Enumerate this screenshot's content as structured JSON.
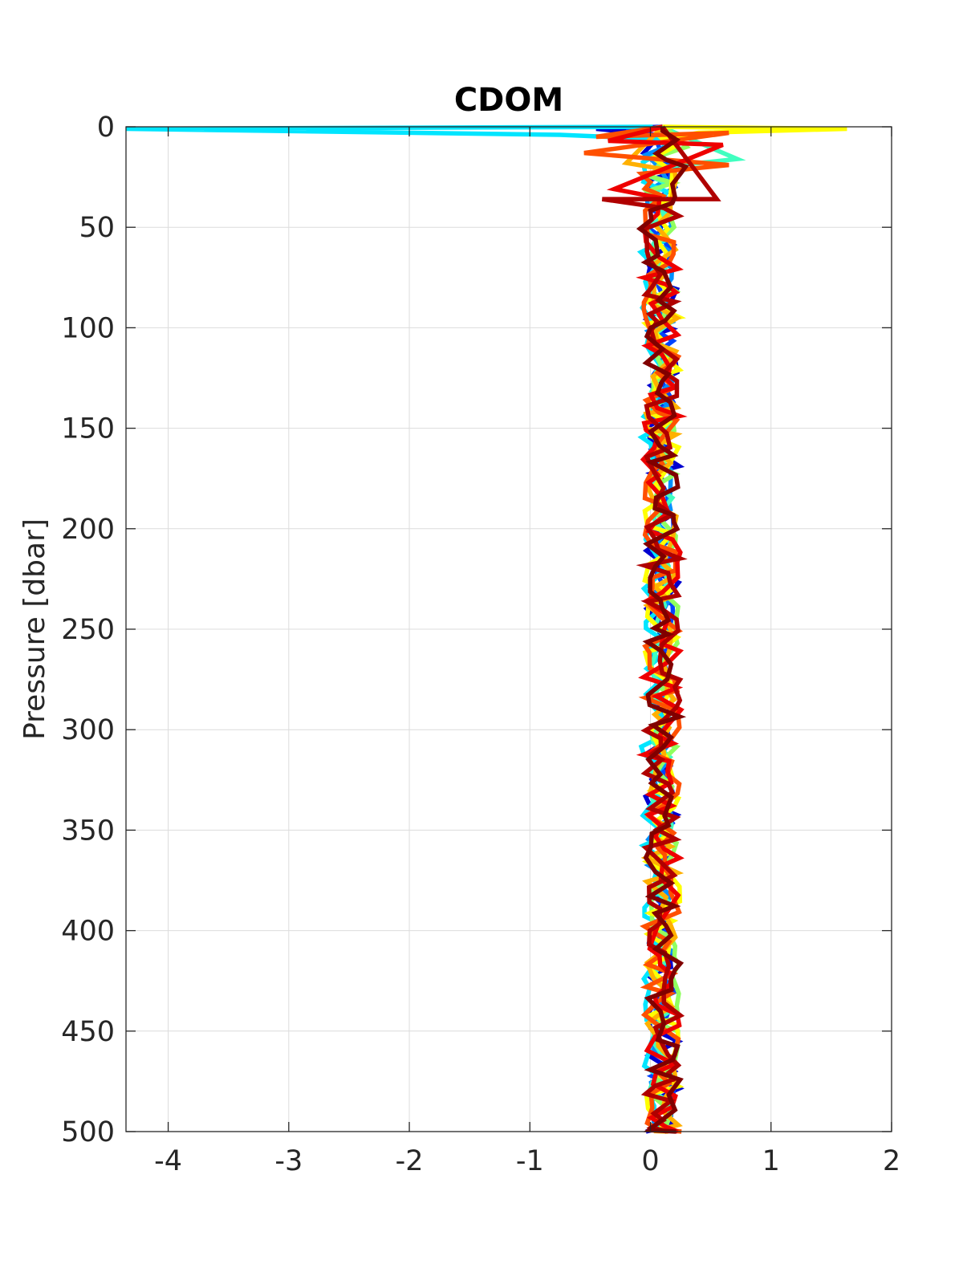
{
  "chart_data": {
    "type": "line",
    "title": "CDOM",
    "xlabel": "",
    "ylabel": "Pressure [dbar]",
    "xlim": [
      -4.35,
      2
    ],
    "ylim": [
      0,
      500
    ],
    "y_reversed": true,
    "grid": true,
    "xticks": [
      -4,
      -3,
      -2,
      -1,
      0,
      1,
      2
    ],
    "xtick_labels": [
      "-4",
      "-3",
      "-2",
      "-1",
      "0",
      "1",
      "2"
    ],
    "yticks": [
      0,
      50,
      100,
      150,
      200,
      250,
      300,
      350,
      400,
      450,
      500
    ],
    "ytick_labels": [
      "0",
      "50",
      "100",
      "150",
      "200",
      "250",
      "300",
      "350",
      "400",
      "450",
      "500"
    ],
    "series": [
      {
        "color": "#0000d0",
        "seed": 11,
        "amp": 0.14,
        "center": 0.1,
        "surface": [
          [
            -0.45,
            1
          ],
          [
            0.05,
            4
          ]
        ]
      },
      {
        "color": "#0044ff",
        "seed": 23,
        "amp": 0.1,
        "center": 0.1,
        "surface": [
          [
            -0.2,
            2
          ],
          [
            0.1,
            5
          ]
        ]
      },
      {
        "color": "#0090ff",
        "seed": 37,
        "amp": 0.1,
        "center": 0.08,
        "surface": [
          [
            -0.15,
            3
          ],
          [
            0.1,
            6
          ]
        ]
      },
      {
        "color": "#00e5ff",
        "seed": 41,
        "amp": 0.1,
        "center": 0.02,
        "surface": [
          [
            -4.35,
            1
          ],
          [
            -0.75,
            4
          ],
          [
            0.05,
            6
          ]
        ]
      },
      {
        "color": "#40ffc0",
        "seed": 53,
        "amp": 0.1,
        "center": 0.09,
        "surface": [
          [
            0.72,
            16
          ],
          [
            0.1,
            20
          ]
        ]
      },
      {
        "color": "#90ff60",
        "seed": 67,
        "amp": 0.12,
        "center": 0.12,
        "surface": [
          [
            0.3,
            10
          ],
          [
            0.1,
            14
          ]
        ]
      },
      {
        "color": "#ffff00",
        "seed": 71,
        "amp": 0.15,
        "center": 0.1,
        "surface": [
          [
            1.63,
            1
          ],
          [
            0.4,
            3
          ],
          [
            0.1,
            6
          ]
        ]
      },
      {
        "color": "#ffb000",
        "seed": 83,
        "amp": 0.14,
        "center": 0.1,
        "surface": [
          [
            -0.2,
            18
          ],
          [
            0.2,
            22
          ]
        ]
      },
      {
        "color": "#ff5000",
        "seed": 97,
        "amp": 0.16,
        "center": 0.1,
        "surface": [
          [
            -0.45,
            5
          ],
          [
            0.65,
            3
          ],
          [
            -0.55,
            13
          ],
          [
            0.65,
            19
          ]
        ]
      },
      {
        "color": "#ee0000",
        "seed": 101,
        "amp": 0.16,
        "center": 0.1,
        "surface": [
          [
            -0.35,
            7
          ],
          [
            0.6,
            9
          ],
          [
            -0.3,
            31
          ]
        ]
      },
      {
        "color": "#b00000",
        "seed": 113,
        "amp": 0.15,
        "center": 0.1,
        "surface": [
          [
            0.55,
            36
          ],
          [
            -0.4,
            36
          ]
        ]
      },
      {
        "color": "#800000",
        "seed": 127,
        "amp": 0.15,
        "center": 0.1,
        "surface": [
          [
            0.1,
            2
          ]
        ]
      }
    ]
  }
}
